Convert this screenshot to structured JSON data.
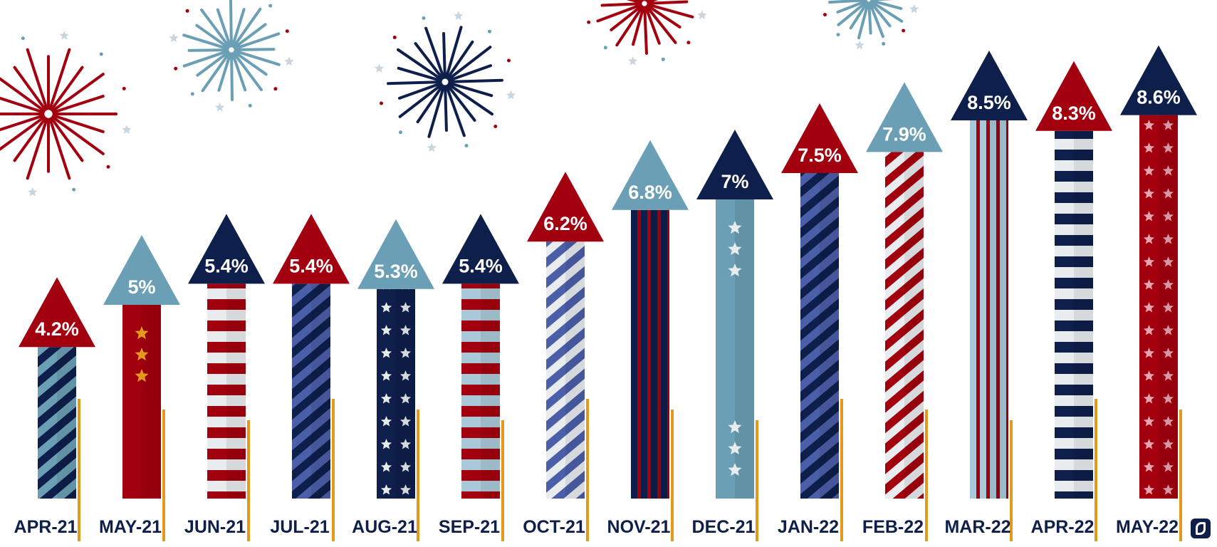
{
  "chart_data": {
    "type": "bar",
    "categories": [
      "APR-21",
      "MAY-21",
      "JUN-21",
      "JUL-21",
      "AUG-21",
      "SEP-21",
      "OCT-21",
      "NOV-21",
      "DEC-21",
      "JAN-22",
      "FEB-22",
      "MAR-22",
      "APR-22",
      "MAY-22"
    ],
    "values": [
      4.2,
      5,
      5.4,
      5.4,
      5.3,
      5.4,
      6.2,
      6.8,
      7,
      7.5,
      7.9,
      8.5,
      8.3,
      8.6
    ],
    "value_labels": [
      "4.2%",
      "5%",
      "5.4%",
      "5.4%",
      "5.3%",
      "5.4%",
      "6.2%",
      "6.8%",
      "7%",
      "7.5%",
      "7.9%",
      "8.5%",
      "8.3%",
      "8.6%"
    ],
    "title": "",
    "xlabel": "",
    "ylabel": "",
    "grid": false,
    "legend": "none"
  },
  "colors": {
    "navy": "#0f1f4b",
    "red": "#a3000f",
    "light_blue": "#6a9fb5",
    "royal_blue": "#4b5ea8",
    "pale_blue": "#a9c9d8",
    "white_stripe": "#e8ecef",
    "gold": "#e39a1c",
    "label_text": "#0f1f4b"
  },
  "rocket_styles": [
    {
      "body": "diagonal",
      "c1": "#0f1f4b",
      "c2": "#6a9fb5",
      "cap": "#a3000f"
    },
    {
      "body": "solid-stars",
      "c1": "#a3000f",
      "c2": "#e39a1c",
      "cap": "#6a9fb5"
    },
    {
      "body": "horizontal",
      "c1": "#a3000f",
      "c2": "#e8ecef",
      "cap": "#0f1f4b"
    },
    {
      "body": "diagonal",
      "c1": "#0f1f4b",
      "c2": "#4b5ea8",
      "cap": "#a3000f"
    },
    {
      "body": "stars",
      "c1": "#0f1f4b",
      "c2": "#e8ecef",
      "cap": "#6a9fb5"
    },
    {
      "body": "horizontal",
      "c1": "#a3000f",
      "c2": "#a9c9d8",
      "cap": "#0f1f4b"
    },
    {
      "body": "diagonal",
      "c1": "#4b5ea8",
      "c2": "#e8ecef",
      "cap": "#a3000f"
    },
    {
      "body": "vertical",
      "c1": "#0f1f4b",
      "c2": "#a3000f",
      "cap": "#6a9fb5"
    },
    {
      "body": "solid-stars",
      "c1": "#6a9fb5",
      "c2": "#e8ecef",
      "cap": "#0f1f4b"
    },
    {
      "body": "diagonal",
      "c1": "#0f1f4b",
      "c2": "#4b5ea8",
      "cap": "#a3000f"
    },
    {
      "body": "diagonal",
      "c1": "#a3000f",
      "c2": "#e8ecef",
      "cap": "#6a9fb5"
    },
    {
      "body": "vertical",
      "c1": "#a9c9d8",
      "c2": "#a3000f",
      "cap": "#0f1f4b"
    },
    {
      "body": "horizontal",
      "c1": "#0f1f4b",
      "c2": "#e8ecef",
      "cap": "#a3000f"
    },
    {
      "body": "stars",
      "c1": "#a3000f",
      "c2": "#e8a5b0",
      "cap": "#0f1f4b"
    }
  ],
  "icons": {
    "fireworks": "firework-burst-icon",
    "logo": "elephant-logo-icon"
  }
}
